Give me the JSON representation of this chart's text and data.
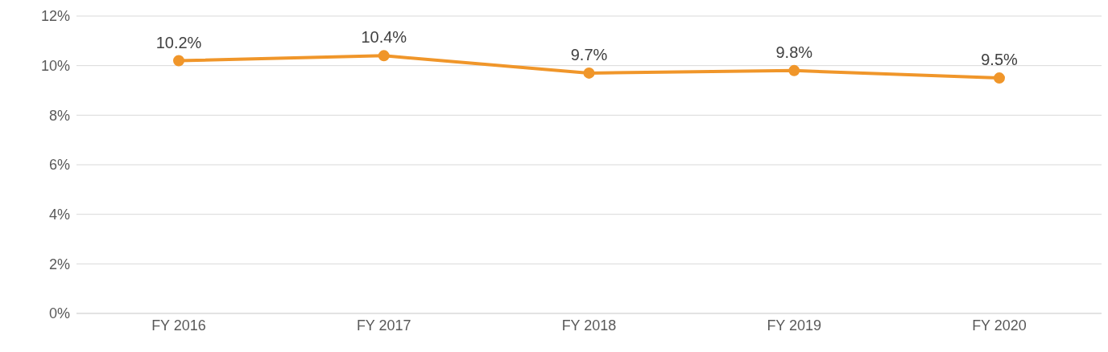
{
  "chart_data": {
    "type": "line",
    "categories": [
      "FY 2016",
      "FY 2017",
      "FY 2018",
      "FY 2019",
      "FY 2020"
    ],
    "series": [
      {
        "color": "#f0962a",
        "values": [
          10.2,
          10.4,
          9.7,
          9.8,
          9.5
        ],
        "value_labels": [
          "10.2%",
          "10.4%",
          "9.7%",
          "9.8%",
          "9.5%"
        ]
      }
    ],
    "ylim": [
      0,
      12
    ],
    "yticks": [
      {
        "value": 0,
        "label": "0%"
      },
      {
        "value": 2,
        "label": "2%"
      },
      {
        "value": 4,
        "label": "4%"
      },
      {
        "value": 6,
        "label": "6%"
      },
      {
        "value": 8,
        "label": "8%"
      },
      {
        "value": 10,
        "label": "10%"
      },
      {
        "value": 12,
        "label": "12%"
      }
    ],
    "grid": "y",
    "marker": "circle",
    "line_style": "solid",
    "legend": false
  }
}
